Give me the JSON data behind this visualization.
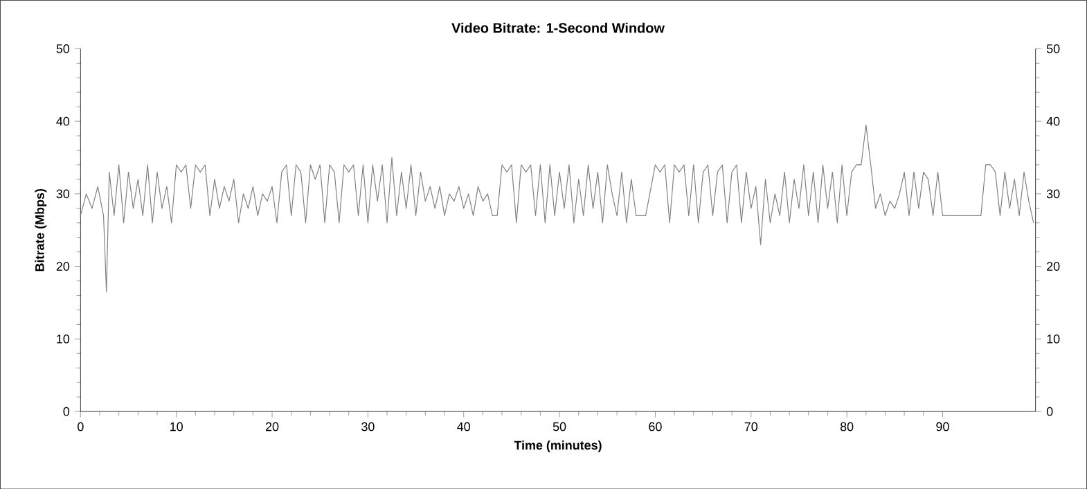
{
  "chart_data": {
    "type": "line",
    "title": "Video Bitrate: 1-Second Window",
    "xlabel": "Time (minutes)",
    "ylabel": "Bitrate (Mbps)",
    "xlim": [
      0,
      99.7
    ],
    "xticks": [
      0,
      10,
      20,
      30,
      40,
      50,
      60,
      70,
      80,
      90
    ],
    "ylim": [
      0,
      50
    ],
    "yticks": [
      0,
      10,
      20,
      30,
      40,
      50
    ],
    "y2lim": [
      0,
      50
    ],
    "y2ticks": [
      0,
      10,
      20,
      30,
      40,
      50
    ],
    "marker": "none",
    "line_style": "solid",
    "series": [
      {
        "color": "#808080",
        "x": [
          0,
          0.6,
          1.2,
          1.8,
          2.4,
          2.7,
          3.0,
          3.5,
          4.0,
          4.5,
          5.0,
          5.5,
          6.0,
          6.5,
          7.0,
          7.5,
          8.0,
          8.5,
          9.0,
          9.5,
          10.0,
          10.5,
          11.0,
          11.5,
          12.0,
          12.5,
          13.0,
          13.5,
          14.0,
          14.5,
          15.0,
          15.5,
          16.0,
          16.5,
          17.0,
          17.5,
          18.0,
          18.5,
          19.0,
          19.5,
          20.0,
          20.5,
          21.0,
          21.5,
          22.0,
          22.5,
          23.0,
          23.5,
          24.0,
          24.5,
          25.0,
          25.5,
          26.0,
          26.5,
          27.0,
          27.5,
          28.0,
          28.5,
          29.0,
          29.5,
          30.0,
          30.5,
          31.0,
          31.5,
          32.0,
          32.5,
          33.0,
          33.5,
          34.0,
          34.5,
          35.0,
          35.5,
          36.0,
          36.5,
          37.0,
          37.5,
          38.0,
          38.5,
          39.0,
          39.5,
          40.0,
          40.5,
          41.0,
          41.5,
          42.0,
          42.5,
          43.0,
          43.5,
          44.0,
          44.5,
          45.0,
          45.5,
          46.0,
          46.5,
          47.0,
          47.5,
          48.0,
          48.5,
          49.0,
          49.5,
          50.0,
          50.5,
          51.0,
          51.5,
          52.0,
          52.5,
          53.0,
          53.5,
          54.0,
          54.5,
          55.0,
          55.5,
          56.0,
          56.5,
          57.0,
          57.5,
          58.0,
          59.0,
          60.0,
          60.5,
          61.0,
          61.5,
          62.0,
          62.5,
          63.0,
          63.5,
          64.0,
          64.5,
          65.0,
          65.5,
          66.0,
          66.5,
          67.0,
          67.5,
          68.0,
          68.5,
          69.0,
          69.5,
          70.0,
          70.5,
          71.0,
          71.5,
          72.0,
          72.5,
          73.0,
          73.5,
          74.0,
          74.5,
          75.0,
          75.5,
          76.0,
          76.5,
          77.0,
          77.5,
          78.0,
          78.5,
          79.0,
          79.5,
          80.0,
          80.5,
          81.0,
          81.5,
          82.0,
          82.5,
          83.0,
          83.5,
          84.0,
          84.5,
          85.0,
          85.5,
          86.0,
          86.5,
          87.0,
          87.5,
          88.0,
          88.5,
          89.0,
          89.5,
          90.0,
          91.0,
          92.0,
          93.0,
          94.0,
          94.5,
          95.0,
          95.5,
          96.0,
          96.5,
          97.0,
          97.5,
          98.0,
          98.5,
          99.0,
          99.5
        ],
        "values": [
          27,
          30,
          28,
          31,
          27,
          16.5,
          33,
          27,
          34,
          26,
          33,
          28,
          32,
          27,
          34,
          26,
          33,
          28,
          31,
          26,
          34,
          33,
          34,
          28,
          34,
          33,
          34,
          27,
          32,
          28,
          31,
          29,
          32,
          26,
          30,
          28,
          31,
          27,
          30,
          29,
          31,
          26,
          33,
          34,
          27,
          34,
          33,
          26,
          34,
          32,
          34,
          26,
          34,
          33,
          26,
          34,
          33,
          34,
          27,
          34,
          26,
          34,
          29,
          34,
          26,
          35,
          27,
          33,
          28,
          34,
          27,
          33,
          29,
          31,
          28,
          31,
          27,
          30,
          29,
          31,
          28,
          30,
          27,
          31,
          29,
          30,
          27,
          27,
          34,
          33,
          34,
          26,
          34,
          33,
          34,
          27,
          34,
          26,
          34,
          27,
          33,
          28,
          34,
          26,
          32,
          27,
          34,
          28,
          33,
          26,
          34,
          30,
          27,
          33,
          26,
          32,
          27,
          27,
          34,
          33,
          34,
          26,
          34,
          33,
          34,
          27,
          34,
          26,
          33,
          34,
          27,
          33,
          34,
          26,
          33,
          34,
          26,
          33,
          28,
          31,
          23,
          32,
          26,
          30,
          27,
          33,
          26,
          32,
          28,
          34,
          27,
          33,
          26,
          34,
          28,
          33,
          26,
          34,
          27,
          33,
          34,
          34,
          39.5,
          34,
          28,
          30,
          27,
          29,
          28,
          30,
          33,
          27,
          33,
          28,
          33,
          32,
          27,
          33,
          27,
          27,
          27,
          27,
          27,
          34,
          34,
          33,
          27,
          33,
          28,
          32,
          27,
          33,
          29,
          26
        ]
      }
    ]
  }
}
